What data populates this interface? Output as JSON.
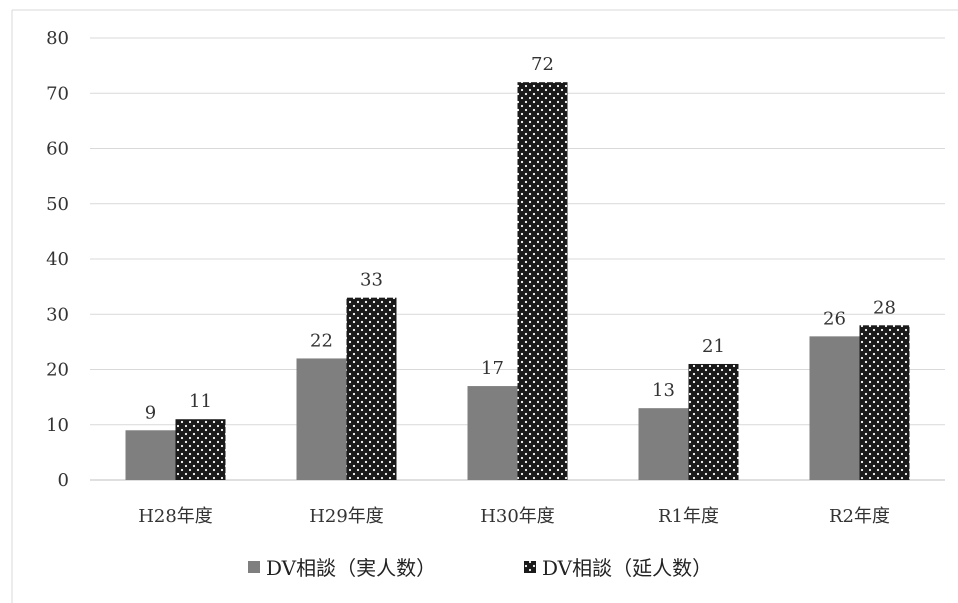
{
  "chart_data": {
    "type": "bar",
    "title": "",
    "xlabel": "",
    "ylabel": "",
    "categories": [
      "H28年度",
      "H29年度",
      "H30年度",
      "R1年度",
      "R2年度"
    ],
    "series": [
      {
        "name": "DV相談（実人数）",
        "values": [
          9,
          22,
          17,
          13,
          26
        ],
        "color": "#7f7f7f",
        "pattern": "solid"
      },
      {
        "name": "DV相談（延人数）",
        "values": [
          11,
          33,
          72,
          21,
          28
        ],
        "color": "#1a1a1a",
        "pattern": "dotted"
      }
    ],
    "ylim": [
      0,
      80
    ],
    "yticks": [
      0,
      10,
      20,
      30,
      40,
      50,
      60,
      70,
      80
    ],
    "grid": true,
    "legend_position": "bottom",
    "data_labels": true
  }
}
